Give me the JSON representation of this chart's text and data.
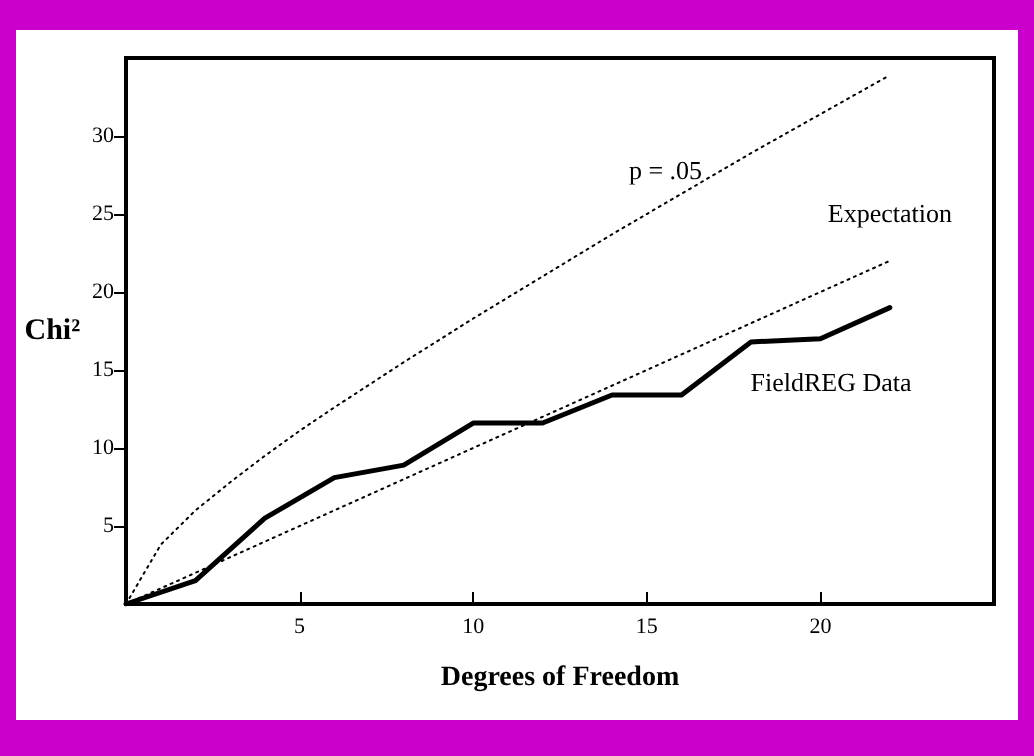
{
  "chart_data": {
    "type": "line",
    "xlabel": "Degrees of Freedom",
    "ylabel": "Chi²",
    "xlim": [
      0,
      25
    ],
    "xticks": [
      5,
      10,
      15,
      20
    ],
    "ylim": [
      0,
      35
    ],
    "yticks": [
      5,
      10,
      15,
      20,
      25,
      30
    ],
    "grid": false,
    "legend": false,
    "marker": "none",
    "series": [
      {
        "name": "p = .05",
        "color": "#000000",
        "line_style": "dotted",
        "x": [
          0,
          1,
          2,
          3,
          4,
          5,
          6,
          8,
          10,
          12,
          14,
          16,
          18,
          20,
          22
        ],
        "values": [
          0,
          3.8,
          6.0,
          7.8,
          9.5,
          11.1,
          12.6,
          15.5,
          18.3,
          21.0,
          23.7,
          26.3,
          28.9,
          31.4,
          33.9
        ]
      },
      {
        "name": "Expectation",
        "color": "#000000",
        "line_style": "dotted",
        "x": [
          0,
          22
        ],
        "values": [
          0,
          22
        ]
      },
      {
        "name": "FieldREG Data",
        "color": "#000000",
        "line_style": "solid",
        "x": [
          0,
          2,
          4,
          6,
          8,
          10,
          12,
          14,
          16,
          18,
          20,
          22
        ],
        "values": [
          0,
          1.5,
          5.5,
          8.1,
          8.9,
          11.6,
          11.6,
          13.4,
          13.4,
          16.8,
          17.0,
          19.0
        ]
      }
    ]
  }
}
